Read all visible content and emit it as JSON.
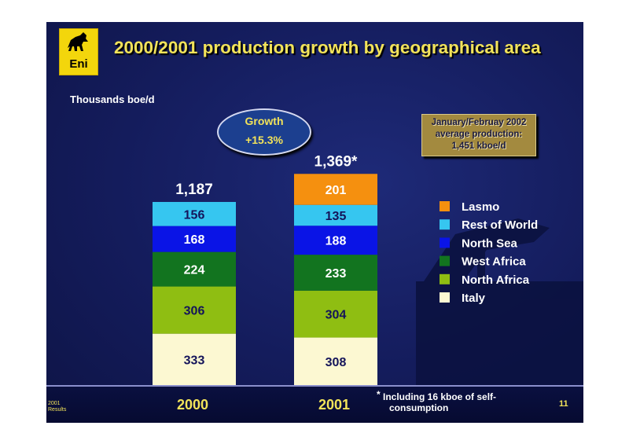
{
  "slide": {
    "title": "2000/2001 production growth by geographical area",
    "logo_text": "Eni",
    "unit_label": "Thousands boe/d",
    "growth": {
      "line1": "Growth",
      "line2": "+15.3%"
    },
    "jan_box": [
      "January/Februay 2002",
      "average production:",
      "1,451 kboe/d"
    ],
    "footnote": {
      "marker": "*",
      "line1": "Including 16 kboe of self-",
      "line2": "consumption"
    },
    "page_number": "11",
    "corner_text": [
      "2001",
      "Results"
    ],
    "colors": {
      "title": "#f2e35a",
      "background": "#141c5c"
    }
  },
  "chart_data": {
    "type": "bar",
    "stacked": true,
    "categories": [
      "2000",
      "2001"
    ],
    "totals": [
      "1,187",
      "1,369*"
    ],
    "series": [
      {
        "name": "Italy",
        "color": "#fcf8d2",
        "text_color": "#14145a",
        "values": [
          333,
          308
        ]
      },
      {
        "name": "North Africa",
        "color": "#8fbe12",
        "text_color": "#14145a",
        "values": [
          306,
          304
        ]
      },
      {
        "name": "West Africa",
        "color": "#12741f",
        "text_color": "#ffffff",
        "values": [
          224,
          233
        ]
      },
      {
        "name": "North Sea",
        "color": "#0a14e6",
        "text_color": "#ffffff",
        "values": [
          168,
          188
        ]
      },
      {
        "name": "Rest of World",
        "color": "#36c6f0",
        "text_color": "#14145a",
        "values": [
          156,
          135
        ]
      },
      {
        "name": "Lasmo",
        "color": "#f5900f",
        "text_color": "#ffffff",
        "values": [
          null,
          201
        ]
      }
    ],
    "legend_order": [
      "Lasmo",
      "Rest of World",
      "North Sea",
      "West Africa",
      "North Africa",
      "Italy"
    ],
    "legend_position": "right"
  }
}
